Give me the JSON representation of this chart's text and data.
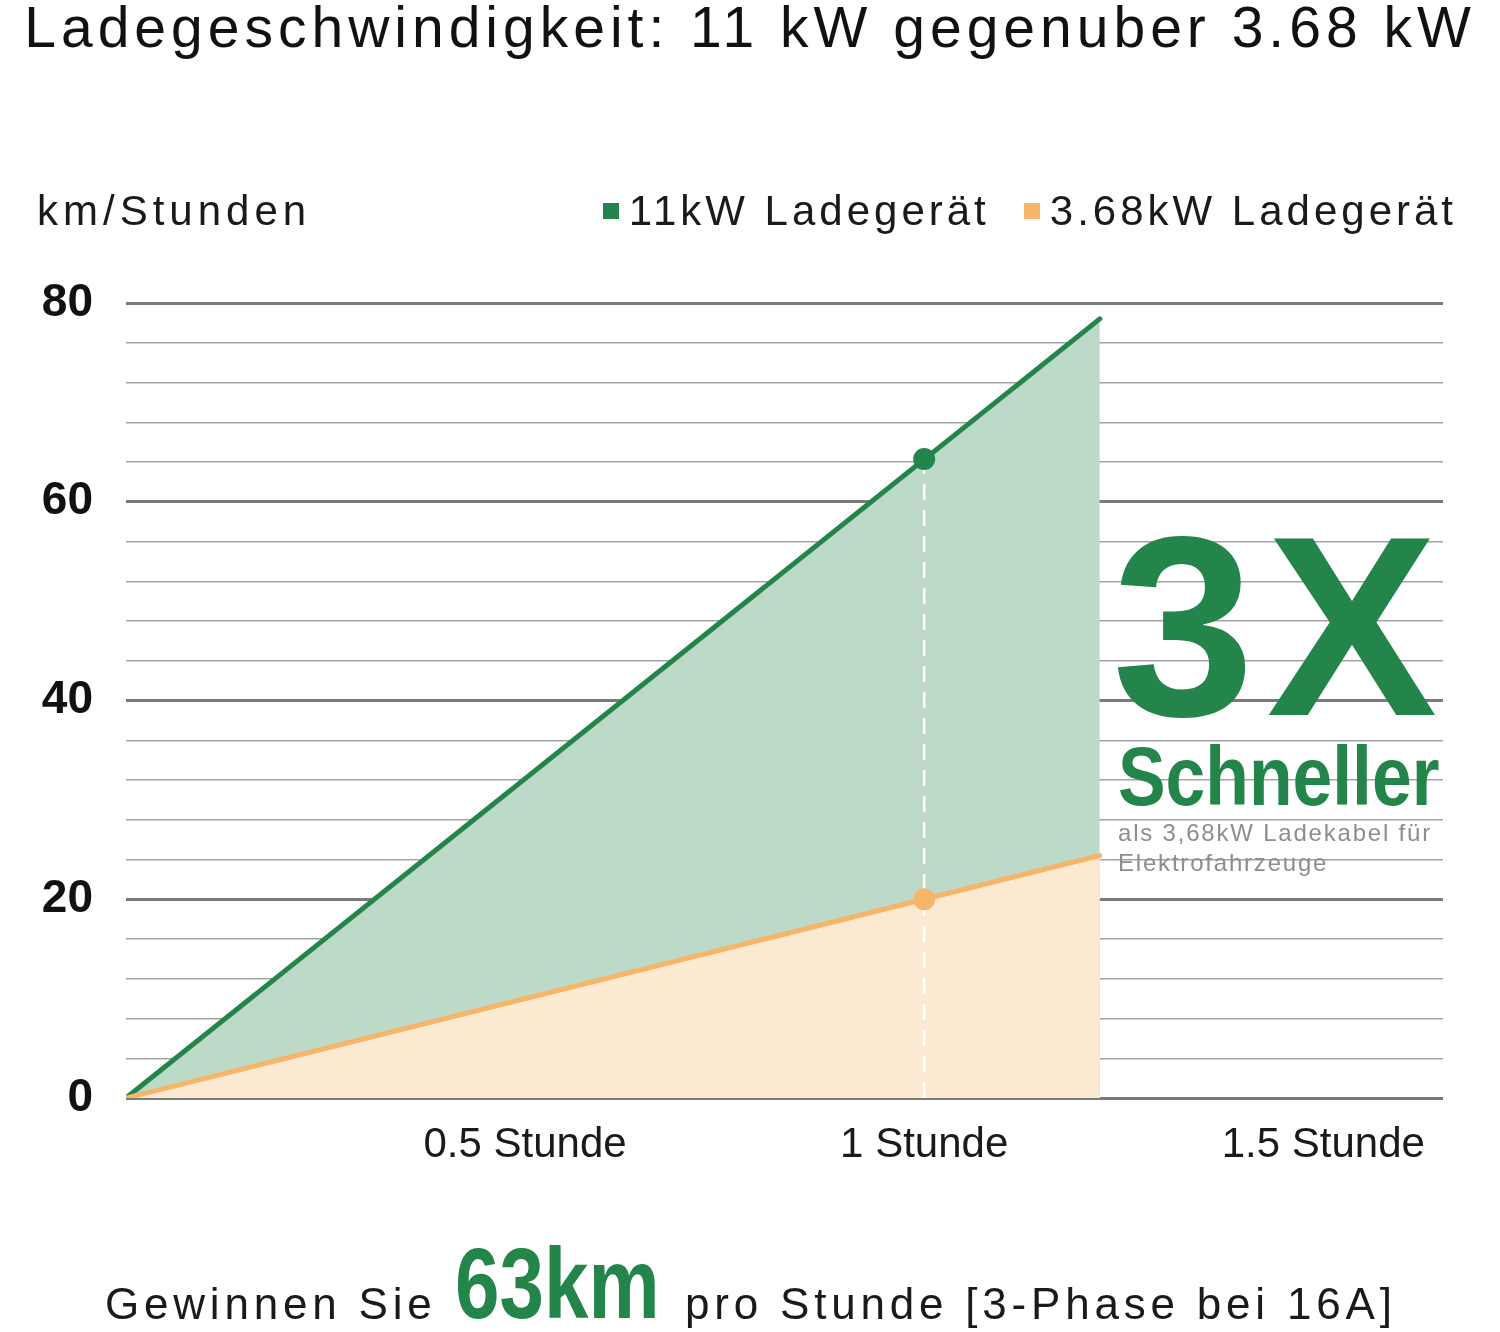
{
  "chart_data": {
    "type": "area",
    "title": "Ladegeschwindigkeit: 11 kW gegenuber 3.68 kW",
    "ylabel": "km/Stunden",
    "xlim": [
      0,
      1.65
    ],
    "xticks": [
      {
        "value": 0.5,
        "label": "0.5 Stunde"
      },
      {
        "value": 1,
        "label": "1 Stunde"
      },
      {
        "value": 1.5,
        "label": "1.5 Stunde"
      }
    ],
    "ylim": [
      0,
      80
    ],
    "yticks": [
      0,
      {
        "value": 4,
        "label": null
      },
      {
        "value": 8,
        "label": null
      },
      {
        "value": 12,
        "label": null
      },
      {
        "value": 16,
        "label": null
      },
      20,
      {
        "value": 24,
        "label": null
      },
      {
        "value": 28,
        "label": null
      },
      {
        "value": 32,
        "label": null
      },
      {
        "value": 36,
        "label": null
      },
      40,
      {
        "value": 44,
        "label": null
      },
      {
        "value": 48,
        "label": null
      },
      {
        "value": 52,
        "label": null
      },
      {
        "value": 56,
        "label": null
      },
      60,
      {
        "value": 64,
        "label": null
      },
      {
        "value": 68,
        "label": null
      },
      {
        "value": 72,
        "label": null
      },
      {
        "value": 76,
        "label": null
      },
      80
    ],
    "grid": "y",
    "legend": "top right",
    "series": [
      {
        "name": "11kW Ladegerät",
        "color": "#23854a",
        "x": [
          0,
          1.22
        ],
        "values": [
          0,
          78.4
        ]
      },
      {
        "name": "3.68kW Ladegerät",
        "color": "#f6b66a",
        "x": [
          0,
          1.22
        ],
        "values": [
          0,
          24.4
        ]
      },
      {
        "type": "scatter",
        "marker": "circle",
        "x": [
          1,
          1
        ],
        "values": [
          64.3,
          20
        ],
        "colors": [
          "#23854a",
          "#f6b66a"
        ]
      }
    ],
    "ref_lines": [
      {
        "axis": "x",
        "value": 1,
        "color": "#ffffff",
        "line_style": "dashed"
      }
    ],
    "annotations": [
      "3X",
      "Schneller",
      "als 3,68kW Ladekabel für Elektrofahrzeuge",
      "Gewinnen Sie",
      "63km",
      "pro Stunde [3-Phase bei 16A]"
    ]
  }
}
